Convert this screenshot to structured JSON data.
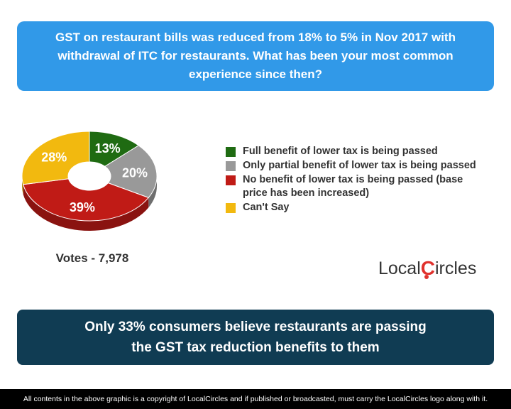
{
  "question": "GST on restaurant bills was reduced from 18% to 5% in Nov 2017 with withdrawal of ITC for restaurants. What has been your most common experience since then?",
  "votes": "Votes - 7,978",
  "takeaway_line1": "Only 33% consumers believe restaurants are passing",
  "takeaway_line2": "the GST tax reduction benefits to them",
  "footer": "All contents in the above graphic is a copyright of LocalCircles and if published or broadcasted, must carry the LocalCircles logo along with it.",
  "logo": {
    "part1": "Local",
    "part2": "C",
    "part3": "ircles"
  },
  "chart_data": {
    "type": "pie",
    "style": "3d-donut",
    "categories": [
      "Full benefit of lower tax is being passed",
      "Only partial benefit of lower tax is being passed",
      "No benefit of lower tax is being passed (base price has been increased)",
      "Can't Say"
    ],
    "values": [
      13,
      20,
      39,
      28
    ],
    "labels": [
      "13%",
      "20%",
      "39%",
      "28%"
    ],
    "colors": [
      "#1f6b12",
      "#999999",
      "#c01b16",
      "#f2b90f"
    ],
    "legend_position": "right"
  }
}
